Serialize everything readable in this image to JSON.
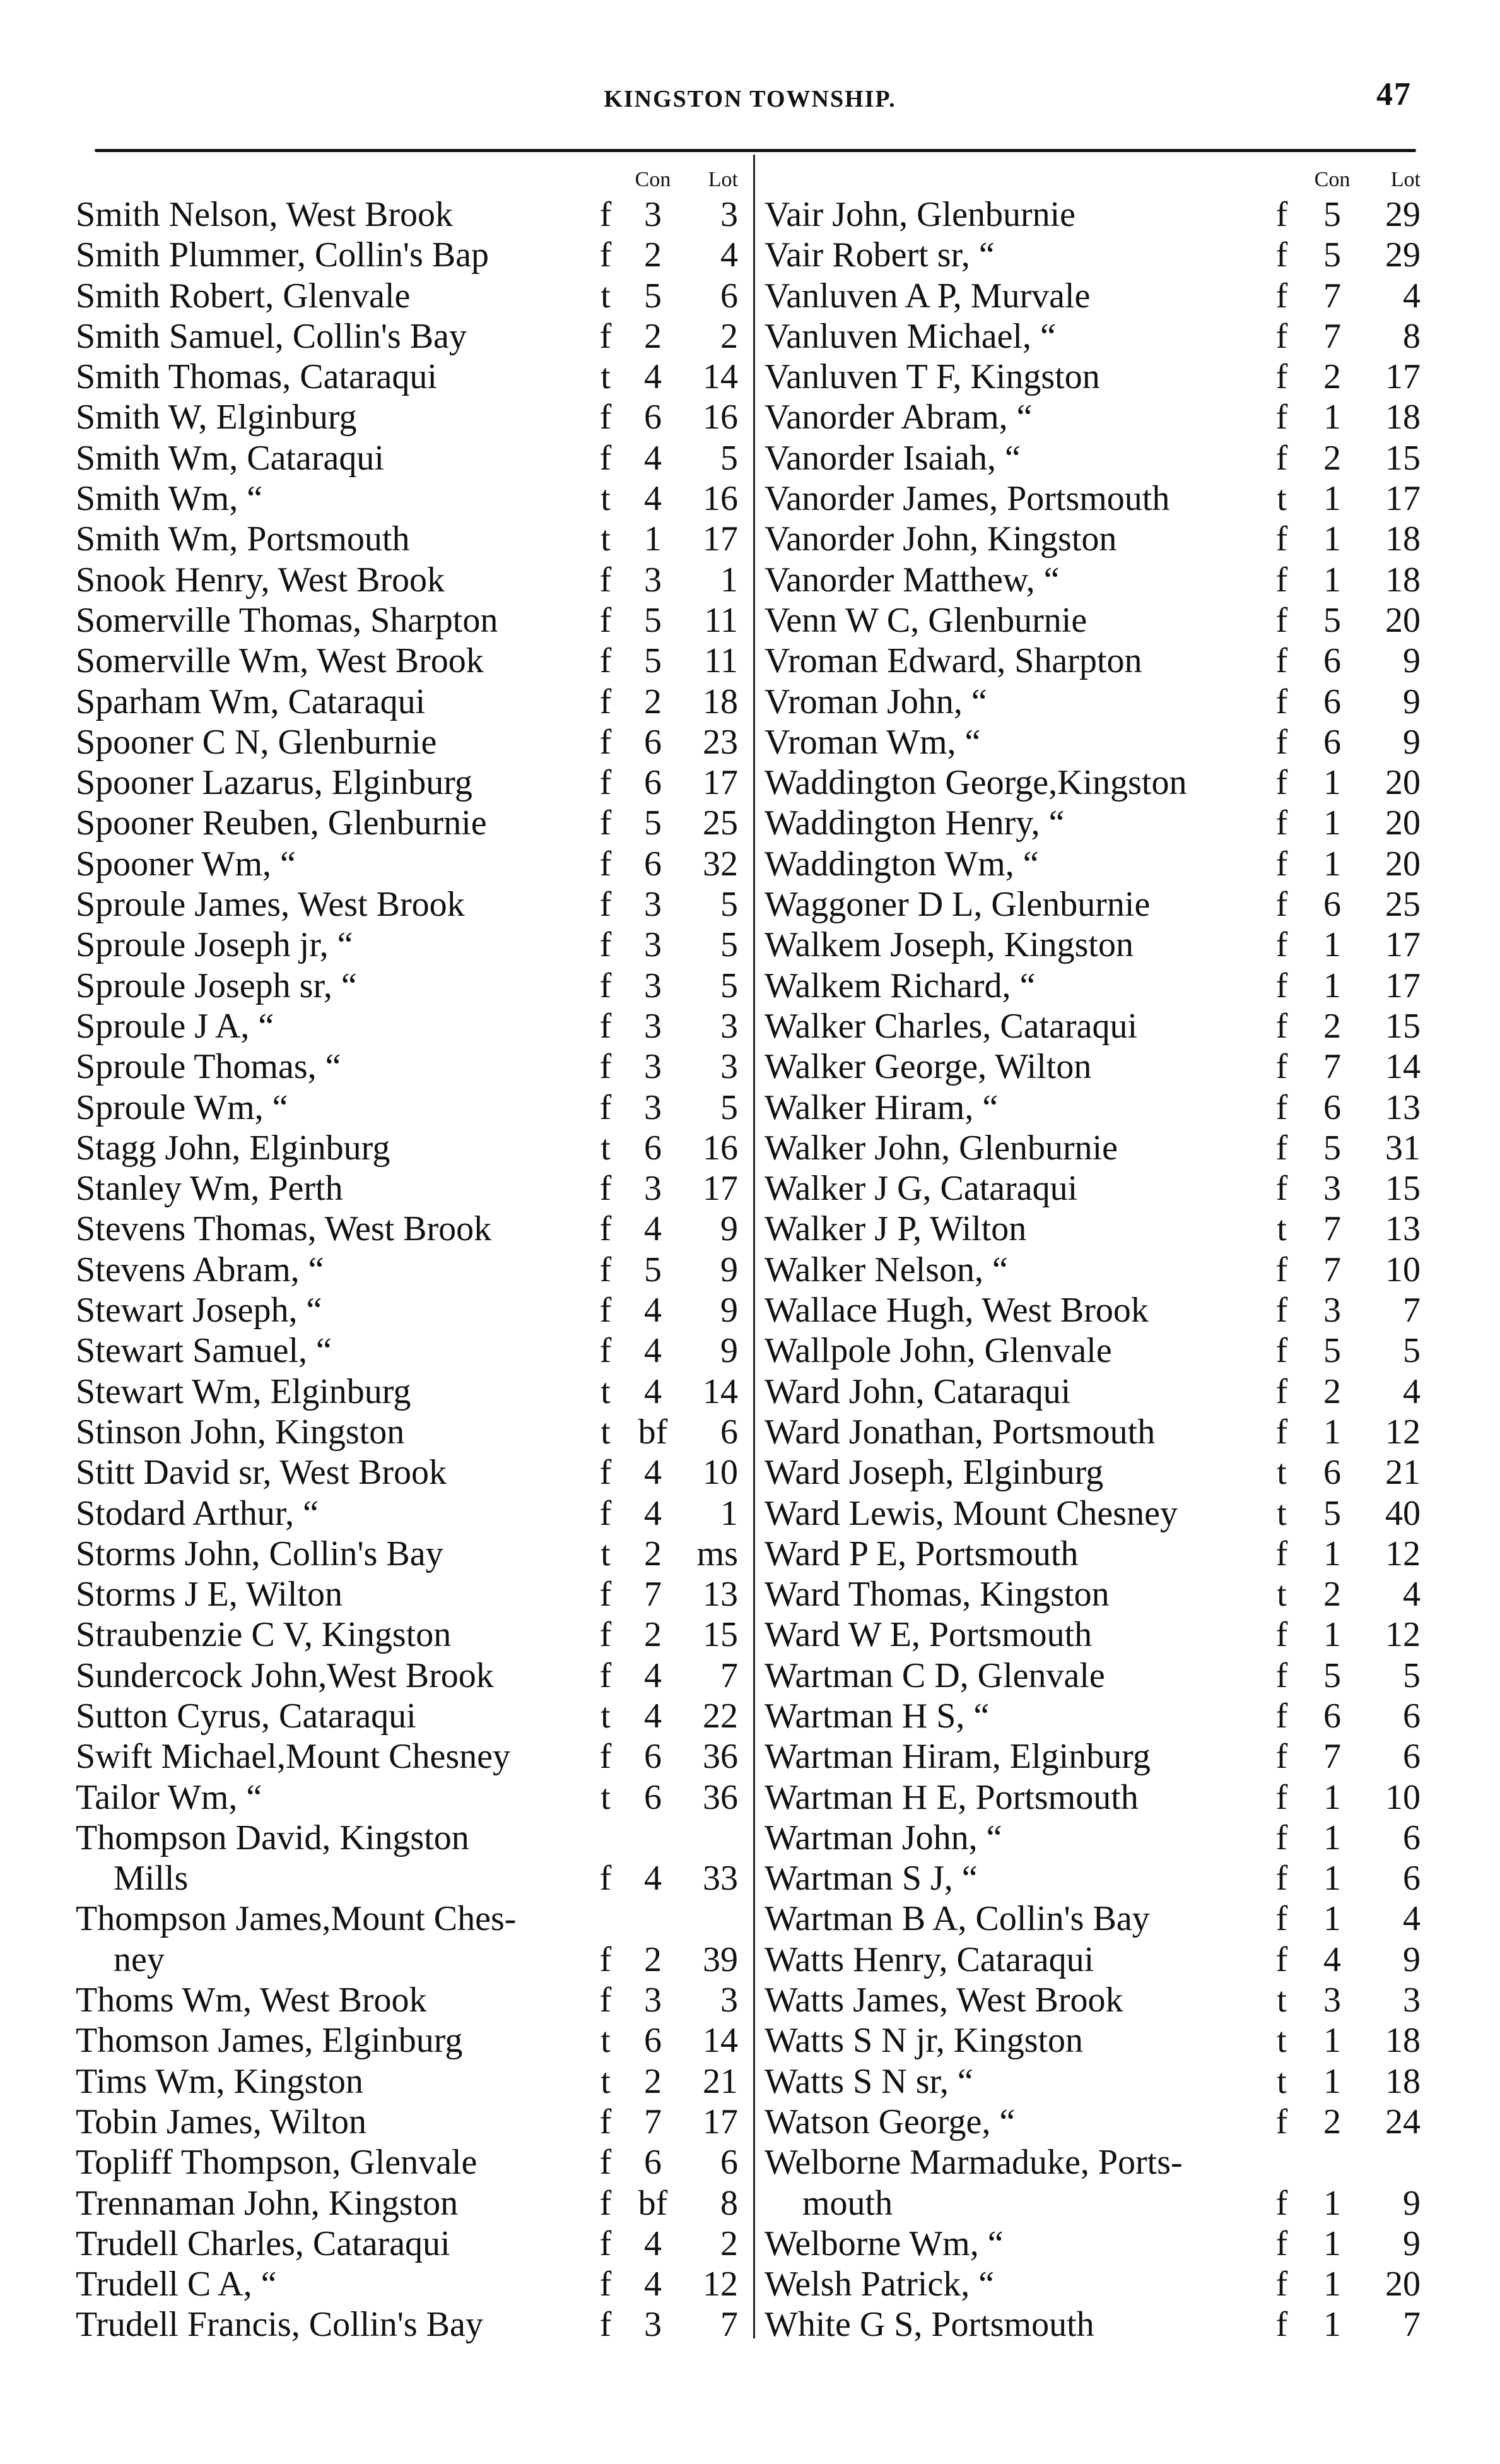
{
  "header": {
    "title": "KINGSTON TOWNSHIP.",
    "page_number": "47"
  },
  "column_headers": {
    "con": "Con",
    "lot": "Lot"
  },
  "left": [
    {
      "name": "Smith Nelson, West Brook",
      "t": "f",
      "c": "3",
      "l": "3"
    },
    {
      "name": "Smith Plummer, Collin's Bap",
      "t": "f",
      "c": "2",
      "l": "4"
    },
    {
      "name": "Smith Robert, Glenvale",
      "t": "t",
      "c": "5",
      "l": "6"
    },
    {
      "name": "Smith Samuel, Collin's Bay",
      "t": "f",
      "c": "2",
      "l": "2"
    },
    {
      "name": "Smith Thomas, Cataraqui",
      "t": "t",
      "c": "4",
      "l": "14"
    },
    {
      "name": "Smith W, Elginburg",
      "t": "f",
      "c": "6",
      "l": "16"
    },
    {
      "name": "Smith Wm, Cataraqui",
      "t": "f",
      "c": "4",
      "l": "5"
    },
    {
      "name": "Smith Wm,            “",
      "t": "t",
      "c": "4",
      "l": "16"
    },
    {
      "name": "Smith Wm, Portsmouth",
      "t": "t",
      "c": "1",
      "l": "17"
    },
    {
      "name": "Snook Henry, West Brook",
      "t": "f",
      "c": "3",
      "l": "1"
    },
    {
      "name": "Somerville Thomas, Sharpton",
      "t": "f",
      "c": "5",
      "l": "11"
    },
    {
      "name": "Somerville Wm, West Brook",
      "t": "f",
      "c": "5",
      "l": "11"
    },
    {
      "name": "Sparham Wm, Cataraqui",
      "t": "f",
      "c": "2",
      "l": "18"
    },
    {
      "name": "Spooner C N, Glenburnie",
      "t": "f",
      "c": "6",
      "l": "23"
    },
    {
      "name": "Spooner Lazarus, Elginburg",
      "t": "f",
      "c": "6",
      "l": "17"
    },
    {
      "name": "Spooner Reuben, Glenburnie",
      "t": "f",
      "c": "5",
      "l": "25"
    },
    {
      "name": "Spooner Wm,              “",
      "t": "f",
      "c": "6",
      "l": "32"
    },
    {
      "name": "Sproule James, West Brook",
      "t": "f",
      "c": "3",
      "l": "5"
    },
    {
      "name": "Sproule Joseph jr,       “",
      "t": "f",
      "c": "3",
      "l": "5"
    },
    {
      "name": "Sproule Joseph sr,       “",
      "t": "f",
      "c": "3",
      "l": "5"
    },
    {
      "name": "Sproule J A,             “",
      "t": "f",
      "c": "3",
      "l": "3"
    },
    {
      "name": "Sproule Thomas,          “",
      "t": "f",
      "c": "3",
      "l": "3"
    },
    {
      "name": "Sproule Wm,              “",
      "t": "f",
      "c": "3",
      "l": "5"
    },
    {
      "name": "Stagg John, Elginburg",
      "t": "t",
      "c": "6",
      "l": "16"
    },
    {
      "name": "Stanley Wm, Perth",
      "t": "f",
      "c": "3",
      "l": "17"
    },
    {
      "name": "Stevens Thomas, West Brook",
      "t": "f",
      "c": "4",
      "l": "9"
    },
    {
      "name": "Stevens Abram,           “",
      "t": "f",
      "c": "5",
      "l": "9"
    },
    {
      "name": "Stewart Joseph,          “",
      "t": "f",
      "c": "4",
      "l": "9"
    },
    {
      "name": "Stewart Samuel,          “",
      "t": "f",
      "c": "4",
      "l": "9"
    },
    {
      "name": "Stewart Wm, Elginburg",
      "t": "t",
      "c": "4",
      "l": "14"
    },
    {
      "name": "Stinson John, Kingston",
      "t": "t",
      "c": "bf",
      "l": "6"
    },
    {
      "name": "Stitt David sr, West Brook",
      "t": "f",
      "c": "4",
      "l": "10"
    },
    {
      "name": "Stodard Arthur,        “",
      "t": "f",
      "c": "4",
      "l": "1"
    },
    {
      "name": "Storms John, Collin's Bay",
      "t": "t",
      "c": "2",
      "l": "ms"
    },
    {
      "name": "Storms J E, Wilton",
      "t": "f",
      "c": "7",
      "l": "13"
    },
    {
      "name": "Straubenzie C V, Kingston",
      "t": "f",
      "c": "2",
      "l": "15"
    },
    {
      "name": "Sundercock John,West Brook",
      "t": "f",
      "c": "4",
      "l": "7"
    },
    {
      "name": "Sutton Cyrus, Cataraqui",
      "t": "t",
      "c": "4",
      "l": "22"
    },
    {
      "name": "Swift Michael,Mount Chesney",
      "t": "f",
      "c": "6",
      "l": "36"
    },
    {
      "name": "Tailor Wm,               “",
      "t": "t",
      "c": "6",
      "l": "36"
    },
    {
      "name": "Thompson  David,  Kingston",
      "t": "",
      "c": "",
      "l": ""
    },
    {
      "name": "Mills",
      "t": "f",
      "c": "4",
      "l": "33",
      "continuation": true
    },
    {
      "name": "Thompson James,Mount Ches-",
      "t": "",
      "c": "",
      "l": ""
    },
    {
      "name": "ney",
      "t": "f",
      "c": "2",
      "l": "39",
      "continuation": true
    },
    {
      "name": "Thoms Wm, West Brook",
      "t": "f",
      "c": "3",
      "l": "3"
    },
    {
      "name": "Thomson James, Elginburg",
      "t": "t",
      "c": "6",
      "l": "14"
    },
    {
      "name": "Tims Wm, Kingston",
      "t": "t",
      "c": "2",
      "l": "21"
    },
    {
      "name": "Tobin James, Wilton",
      "t": "f",
      "c": "7",
      "l": "17"
    },
    {
      "name": "Topliff Thompson, Glenvale",
      "t": "f",
      "c": "6",
      "l": "6"
    },
    {
      "name": "Trennaman John, Kingston",
      "t": "f",
      "c": "bf",
      "l": "8"
    },
    {
      "name": "Trudell Charles, Cataraqui",
      "t": "f",
      "c": "4",
      "l": "2"
    },
    {
      "name": "Trudell C A,          “",
      "t": "f",
      "c": "4",
      "l": "12"
    },
    {
      "name": "Trudell Francis, Collin's Bay",
      "t": "f",
      "c": "3",
      "l": "7"
    }
  ],
  "right": [
    {
      "name": "Vair John, Glenburnie",
      "t": "f",
      "c": "5",
      "l": "29"
    },
    {
      "name": "Vair Robert sr,  “",
      "t": "f",
      "c": "5",
      "l": "29"
    },
    {
      "name": "Vanluven A P,  Murvale",
      "t": "f",
      "c": "7",
      "l": "4"
    },
    {
      "name": "Vanluven Michael,    “",
      "t": "f",
      "c": "7",
      "l": "8"
    },
    {
      "name": "Vanluven T F, Kingston",
      "t": "f",
      "c": "2",
      "l": "17"
    },
    {
      "name": "Vanorder Abram,      “",
      "t": "f",
      "c": "1",
      "l": "18"
    },
    {
      "name": "Vanorder Isaiah,     “",
      "t": "f",
      "c": "2",
      "l": "15"
    },
    {
      "name": "Vanorder James, Portsmouth",
      "t": "t",
      "c": "1",
      "l": "17"
    },
    {
      "name": "Vanorder John, Kingston",
      "t": "f",
      "c": "1",
      "l": "18"
    },
    {
      "name": "Vanorder Matthew,  “",
      "t": "f",
      "c": "1",
      "l": "18"
    },
    {
      "name": "Venn W C, Glenburnie",
      "t": "f",
      "c": "5",
      "l": "20"
    },
    {
      "name": "Vroman Edward, Sharpton",
      "t": "f",
      "c": "6",
      "l": "9"
    },
    {
      "name": "Vroman John,           “",
      "t": "f",
      "c": "6",
      "l": "9"
    },
    {
      "name": "Vroman Wm,             “",
      "t": "f",
      "c": "6",
      "l": "9"
    },
    {
      "name": "Waddington George,Kingston",
      "t": "f",
      "c": "1",
      "l": "20"
    },
    {
      "name": "Waddington Henry,      “",
      "t": "f",
      "c": "1",
      "l": "20"
    },
    {
      "name": "Waddington Wm,         “",
      "t": "f",
      "c": "1",
      "l": "20"
    },
    {
      "name": "Waggoner D L, Glenburnie",
      "t": "f",
      "c": "6",
      "l": "25"
    },
    {
      "name": "Walkem Joseph, Kingston",
      "t": "f",
      "c": "1",
      "l": "17"
    },
    {
      "name": "Walkem Richard,        “",
      "t": "f",
      "c": "1",
      "l": "17"
    },
    {
      "name": "Walker Charles, Cataraqui",
      "t": "f",
      "c": "2",
      "l": "15"
    },
    {
      "name": "Walker George, Wilton",
      "t": "f",
      "c": "7",
      "l": "14"
    },
    {
      "name": "Walker Hiram,          “",
      "t": "f",
      "c": "6",
      "l": "13"
    },
    {
      "name": "Walker John, Glenburnie",
      "t": "f",
      "c": "5",
      "l": "31"
    },
    {
      "name": "Walker J G, Cataraqui",
      "t": "f",
      "c": "3",
      "l": "15"
    },
    {
      "name": "Walker J P, Wilton",
      "t": "t",
      "c": "7",
      "l": "13"
    },
    {
      "name": "Walker Nelson,  “",
      "t": "f",
      "c": "7",
      "l": "10"
    },
    {
      "name": "Wallace Hugh, West Brook",
      "t": "f",
      "c": "3",
      "l": "7"
    },
    {
      "name": "Wallpole John, Glenvale",
      "t": "f",
      "c": "5",
      "l": "5"
    },
    {
      "name": "Ward John, Cataraqui",
      "t": "f",
      "c": "2",
      "l": "4"
    },
    {
      "name": "Ward Jonathan, Portsmouth",
      "t": "f",
      "c": "1",
      "l": "12"
    },
    {
      "name": "Ward Joseph, Elginburg",
      "t": "t",
      "c": "6",
      "l": "21"
    },
    {
      "name": "Ward Lewis, Mount Chesney",
      "t": "t",
      "c": "5",
      "l": "40"
    },
    {
      "name": "Ward P E, Portsmouth",
      "t": "f",
      "c": "1",
      "l": "12"
    },
    {
      "name": "Ward Thomas, Kingston",
      "t": "t",
      "c": "2",
      "l": "4"
    },
    {
      "name": "Ward W E, Portsmouth",
      "t": "f",
      "c": "1",
      "l": "12"
    },
    {
      "name": "Wartman C D, Glenvale",
      "t": "f",
      "c": "5",
      "l": "5"
    },
    {
      "name": "Wartman H S,        “",
      "t": "f",
      "c": "6",
      "l": "6"
    },
    {
      "name": "Wartman Hiram, Elginburg",
      "t": "f",
      "c": "7",
      "l": "6"
    },
    {
      "name": "Wartman H E, Portsmouth",
      "t": "f",
      "c": "1",
      "l": "10"
    },
    {
      "name": "Wartman John,       “",
      "t": "f",
      "c": "1",
      "l": "6"
    },
    {
      "name": "Wartman S J,        “",
      "t": "f",
      "c": "1",
      "l": "6"
    },
    {
      "name": "Wartman B A, Collin's Bay",
      "t": "f",
      "c": "1",
      "l": "4"
    },
    {
      "name": "Watts Henry, Cataraqui",
      "t": "f",
      "c": "4",
      "l": "9"
    },
    {
      "name": "Watts James, West Brook",
      "t": "t",
      "c": "3",
      "l": "3"
    },
    {
      "name": "Watts S N jr, Kingston",
      "t": "t",
      "c": "1",
      "l": "18"
    },
    {
      "name": "Watts S N sr,       “",
      "t": "t",
      "c": "1",
      "l": "18"
    },
    {
      "name": "Watson George,      “",
      "t": "f",
      "c": "2",
      "l": "24"
    },
    {
      "name": "Welborne Marmaduke, Ports-",
      "t": "",
      "c": "",
      "l": ""
    },
    {
      "name": "mouth",
      "t": "f",
      "c": "1",
      "l": "9",
      "continuation": true
    },
    {
      "name": "Welborne Wm,             “",
      "t": "f",
      "c": "1",
      "l": "9"
    },
    {
      "name": "Welsh Patrick,           “",
      "t": "f",
      "c": "1",
      "l": "20"
    },
    {
      "name": "White G S, Portsmouth",
      "t": "f",
      "c": "1",
      "l": "7"
    }
  ]
}
